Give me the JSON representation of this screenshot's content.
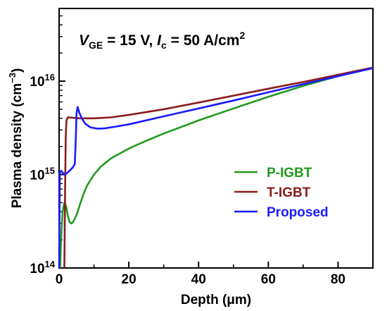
{
  "chart_data": {
    "type": "line",
    "annotation": {
      "v": "V",
      "v_sub": "GE",
      "v_rest": " = 15 V, ",
      "i": "I",
      "i_sub": "c",
      "i_rest": " = 50 A/cm",
      "i_sup": "2"
    },
    "xlabel": "Depth (μm)",
    "ylabel": {
      "main": "Plasma density (cm",
      "sup": "−3",
      "close": ")"
    },
    "xlim": [
      0,
      90
    ],
    "ylim": [
      100000000000000.0,
      6e+16
    ],
    "yscale": "log",
    "x_ticks": [
      "0",
      "20",
      "40",
      "60",
      "80"
    ],
    "y_ticks": [
      {
        "base": "10",
        "exp": "14",
        "value": 100000000000000.0
      },
      {
        "base": "10",
        "exp": "15",
        "value": 1000000000000000.0
      },
      {
        "base": "10",
        "exp": "16",
        "value": 1e+16
      }
    ],
    "legend_position": "bottom-right",
    "series": [
      {
        "name": "P-IGBT",
        "color": "#1f9a1f",
        "points": [
          [
            0.3,
            100000000000000.0
          ],
          [
            0.6,
            220000000000000.0
          ],
          [
            1.0,
            400000000000000.0
          ],
          [
            1.5,
            500000000000000.0
          ],
          [
            2.0,
            460000000000000.0
          ],
          [
            2.5,
            360000000000000.0
          ],
          [
            3.0,
            310000000000000.0
          ],
          [
            3.5,
            300000000000000.0
          ],
          [
            4.0,
            310000000000000.0
          ],
          [
            5.0,
            370000000000000.0
          ],
          [
            6.0,
            480000000000000.0
          ],
          [
            7.0,
            620000000000000.0
          ],
          [
            8.0,
            760000000000000.0
          ],
          [
            10.0,
            1000000000000000.0
          ],
          [
            12.0,
            1220000000000000.0
          ],
          [
            15.0,
            1500000000000000.0
          ],
          [
            20.0,
            1900000000000000.0
          ],
          [
            25.0,
            2300000000000000.0
          ],
          [
            30.0,
            2750000000000000.0
          ],
          [
            40.0,
            3800000000000000.0
          ],
          [
            50.0,
            5100000000000000.0
          ],
          [
            60.0,
            6800000000000000.0
          ],
          [
            70.0,
            8900000000000000.0
          ],
          [
            80.0,
            1.13e+16
          ],
          [
            90.0,
            1.4e+16
          ]
        ]
      },
      {
        "name": "T-IGBT",
        "color": "#8b1a1a",
        "points": [
          [
            1.5,
            100000000000000.0
          ],
          [
            1.7,
            600000000000000.0
          ],
          [
            1.9,
            2500000000000000.0
          ],
          [
            2.1,
            3800000000000000.0
          ],
          [
            2.5,
            4100000000000000.0
          ],
          [
            4.0,
            4050000000000000.0
          ],
          [
            6.0,
            4000000000000000.0
          ],
          [
            10.0,
            4000000000000000.0
          ],
          [
            15.0,
            4100000000000000.0
          ],
          [
            20.0,
            4350000000000000.0
          ],
          [
            30.0,
            5000000000000000.0
          ],
          [
            40.0,
            5900000000000000.0
          ],
          [
            50.0,
            7000000000000000.0
          ],
          [
            60.0,
            8300000000000000.0
          ],
          [
            70.0,
            9800000000000000.0
          ],
          [
            80.0,
            1.17e+16
          ],
          [
            90.0,
            1.4e+16
          ]
        ]
      },
      {
        "name": "Proposed",
        "color": "#1a1aff",
        "points": [
          [
            0.0,
            100000000000000.0
          ],
          [
            0.2,
            1050000000000000.0
          ],
          [
            0.6,
            1100000000000000.0
          ],
          [
            1.0,
            1050000000000000.0
          ],
          [
            1.5,
            1000000000000000.0
          ],
          [
            2.0,
            1020000000000000.0
          ],
          [
            3.0,
            1100000000000000.0
          ],
          [
            4.0,
            1200000000000000.0
          ],
          [
            4.5,
            1300000000000000.0
          ],
          [
            4.8,
            2500000000000000.0
          ],
          [
            5.0,
            4500000000000000.0
          ],
          [
            5.3,
            5300000000000000.0
          ],
          [
            5.8,
            4600000000000000.0
          ],
          [
            6.5,
            4000000000000000.0
          ],
          [
            7.5,
            3500000000000000.0
          ],
          [
            9.0,
            3200000000000000.0
          ],
          [
            11.0,
            3100000000000000.0
          ],
          [
            13.0,
            3120000000000000.0
          ],
          [
            16.0,
            3250000000000000.0
          ],
          [
            20.0,
            3450000000000000.0
          ],
          [
            30.0,
            4200000000000000.0
          ],
          [
            40.0,
            5100000000000000.0
          ],
          [
            50.0,
            6200000000000000.0
          ],
          [
            60.0,
            7600000000000000.0
          ],
          [
            70.0,
            9300000000000000.0
          ],
          [
            80.0,
            1.13e+16
          ],
          [
            90.0,
            1.38e+16
          ]
        ]
      }
    ]
  }
}
